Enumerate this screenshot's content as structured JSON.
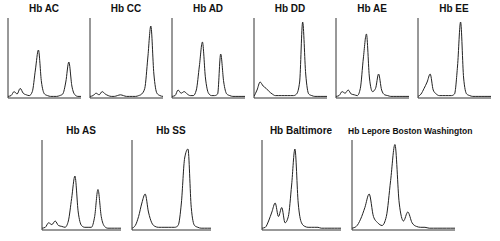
{
  "chart_data": [
    {
      "type": "line",
      "title": "Hb AC",
      "x": [
        0,
        0.25,
        0.5,
        0.75,
        1,
        1.25,
        1.5,
        1.75,
        2,
        2.25,
        2.5,
        2.75,
        3,
        3.25,
        3.5,
        3.75,
        4,
        4.25,
        4.5,
        4.75,
        5,
        5.25,
        5.5,
        5.75,
        6
      ],
      "values": [
        2,
        3,
        8,
        5,
        12,
        6,
        4,
        3,
        8,
        35,
        60,
        20,
        5,
        3,
        2,
        2,
        2,
        3,
        5,
        20,
        45,
        15,
        4,
        2,
        2
      ],
      "color": "#222222",
      "xlim": [
        0,
        6
      ],
      "ylim": [
        0,
        100
      ],
      "xticks": [
        0,
        1,
        2,
        3,
        4,
        5,
        6
      ],
      "yticks": [
        0,
        50,
        100
      ],
      "tick_labels": false,
      "grid": false
    },
    {
      "type": "line",
      "title": "Hb CC",
      "x": [
        0,
        0.25,
        0.5,
        0.75,
        1,
        1.25,
        1.5,
        1.75,
        2,
        2.25,
        2.5,
        2.75,
        3,
        3.25,
        3.5,
        3.75,
        4,
        4.25,
        4.5,
        4.75,
        5,
        5.25,
        5.5,
        5.75,
        6
      ],
      "values": [
        2,
        3,
        6,
        4,
        8,
        5,
        3,
        2,
        2,
        3,
        4,
        3,
        2,
        2,
        2,
        2,
        3,
        5,
        12,
        50,
        90,
        30,
        6,
        3,
        2
      ],
      "color": "#222222",
      "xlim": [
        0,
        6
      ],
      "ylim": [
        0,
        100
      ],
      "xticks": [
        0,
        1,
        2,
        3,
        4,
        5,
        6
      ],
      "yticks": [
        0,
        50,
        100
      ],
      "tick_labels": false,
      "grid": false
    },
    {
      "type": "line",
      "title": "Hb AD",
      "x": [
        0,
        0.25,
        0.5,
        0.75,
        1,
        1.25,
        1.5,
        1.75,
        2,
        2.25,
        2.5,
        2.75,
        3,
        3.25,
        3.5,
        3.75,
        4,
        4.25,
        4.5,
        4.75,
        5,
        5.25,
        5.5,
        5.75,
        6
      ],
      "values": [
        2,
        3,
        10,
        6,
        8,
        5,
        3,
        3,
        10,
        40,
        70,
        25,
        6,
        3,
        3,
        5,
        55,
        20,
        5,
        3,
        2,
        2,
        2,
        2,
        2
      ],
      "color": "#222222",
      "xlim": [
        0,
        6
      ],
      "ylim": [
        0,
        100
      ],
      "xticks": [
        0,
        1,
        2,
        3,
        4,
        5,
        6
      ],
      "yticks": [
        0,
        50,
        100
      ],
      "tick_labels": false,
      "grid": false
    },
    {
      "type": "line",
      "title": "Hb DD",
      "x": [
        0,
        0.25,
        0.5,
        0.75,
        1,
        1.25,
        1.5,
        1.75,
        2,
        2.25,
        2.5,
        2.75,
        3,
        3.25,
        3.5,
        3.75,
        4,
        4.25,
        4.5,
        4.75,
        5,
        5.25,
        5.5,
        5.75,
        6
      ],
      "values": [
        2,
        10,
        20,
        15,
        12,
        8,
        5,
        3,
        3,
        3,
        3,
        3,
        3,
        3,
        5,
        20,
        95,
        30,
        5,
        3,
        2,
        2,
        2,
        2,
        2
      ],
      "color": "#222222",
      "xlim": [
        0,
        6
      ],
      "ylim": [
        0,
        100
      ],
      "xticks": [
        0,
        1,
        2,
        3,
        4,
        5,
        6
      ],
      "yticks": [
        0,
        50,
        100
      ],
      "tick_labels": false,
      "grid": false
    },
    {
      "type": "line",
      "title": "Hb AE",
      "x": [
        0,
        0.25,
        0.5,
        0.75,
        1,
        1.25,
        1.5,
        1.75,
        2,
        2.25,
        2.5,
        2.75,
        3,
        3.25,
        3.5,
        3.75,
        4,
        4.25,
        4.5,
        4.75,
        5,
        5.25,
        5.5,
        5.75,
        6
      ],
      "values": [
        2,
        3,
        8,
        6,
        10,
        5,
        4,
        3,
        12,
        50,
        80,
        25,
        8,
        12,
        30,
        10,
        4,
        3,
        2,
        2,
        2,
        2,
        2,
        2,
        2
      ],
      "color": "#222222",
      "xlim": [
        0,
        6
      ],
      "ylim": [
        0,
        100
      ],
      "xticks": [
        0,
        1,
        2,
        3,
        4,
        5,
        6
      ],
      "yticks": [
        0,
        50,
        100
      ],
      "tick_labels": false,
      "grid": false
    },
    {
      "type": "line",
      "title": "Hb EE",
      "x": [
        0,
        0.25,
        0.5,
        0.75,
        1,
        1.25,
        1.5,
        1.75,
        2,
        2.25,
        2.5,
        2.75,
        3,
        3.25,
        3.5,
        3.75,
        4,
        4.25,
        4.5,
        4.75,
        5,
        5.25,
        5.5,
        5.75,
        6
      ],
      "values": [
        2,
        5,
        12,
        20,
        30,
        10,
        5,
        3,
        3,
        3,
        3,
        3,
        5,
        40,
        95,
        25,
        5,
        3,
        2,
        2,
        2,
        2,
        2,
        2,
        2
      ],
      "color": "#222222",
      "xlim": [
        0,
        6
      ],
      "ylim": [
        0,
        100
      ],
      "xticks": [
        0,
        1,
        2,
        3,
        4,
        5,
        6
      ],
      "yticks": [
        0,
        50,
        100
      ],
      "tick_labels": false,
      "grid": false
    },
    {
      "type": "line",
      "title": "Hb AS",
      "x": [
        0,
        0.25,
        0.5,
        0.75,
        1,
        1.25,
        1.5,
        1.75,
        2,
        2.25,
        2.5,
        2.75,
        3,
        3.25,
        3.5,
        3.75,
        4,
        4.25,
        4.5,
        4.75,
        5,
        5.25,
        5.5,
        5.75,
        6
      ],
      "values": [
        2,
        3,
        8,
        6,
        10,
        5,
        4,
        3,
        10,
        35,
        60,
        20,
        5,
        3,
        3,
        3,
        15,
        45,
        15,
        4,
        2,
        2,
        2,
        2,
        2
      ],
      "color": "#222222",
      "xlim": [
        0,
        6
      ],
      "ylim": [
        0,
        100
      ],
      "xticks": [
        0,
        1,
        2,
        3,
        4,
        5,
        6
      ],
      "yticks": [
        0,
        50,
        100
      ],
      "tick_labels": false,
      "grid": false
    },
    {
      "type": "line",
      "title": "Hb SS",
      "x": [
        0,
        0.25,
        0.5,
        0.75,
        1,
        1.25,
        1.5,
        1.75,
        2,
        2.25,
        2.5,
        2.75,
        3,
        3.25,
        3.5,
        3.75,
        4,
        4.25,
        4.5,
        4.75,
        5,
        5.25,
        5.5,
        5.75,
        6
      ],
      "values": [
        2,
        5,
        15,
        30,
        40,
        20,
        8,
        4,
        3,
        3,
        3,
        3,
        3,
        3,
        5,
        30,
        80,
        90,
        25,
        5,
        3,
        2,
        2,
        2,
        2
      ],
      "color": "#222222",
      "xlim": [
        0,
        6
      ],
      "ylim": [
        0,
        100
      ],
      "xticks": [
        0,
        1,
        2,
        3,
        4,
        5,
        6
      ],
      "yticks": [
        0,
        50,
        100
      ],
      "tick_labels": false,
      "grid": false
    },
    {
      "type": "line",
      "title": "Hb Baltimore",
      "x": [
        0,
        0.25,
        0.5,
        0.75,
        1,
        1.25,
        1.5,
        1.75,
        2,
        2.25,
        2.5,
        2.75,
        3,
        3.25,
        3.5,
        3.75,
        4,
        4.25,
        4.5,
        4.75,
        5,
        5.25,
        5.5,
        5.75,
        6
      ],
      "values": [
        2,
        3,
        10,
        20,
        30,
        15,
        25,
        8,
        15,
        50,
        90,
        30,
        8,
        4,
        3,
        3,
        3,
        3,
        2,
        2,
        2,
        2,
        2,
        2,
        2
      ],
      "color": "#222222",
      "xlim": [
        0,
        6
      ],
      "ylim": [
        0,
        100
      ],
      "xticks": [
        0,
        1,
        2,
        3,
        4,
        5,
        6
      ],
      "yticks": [
        0,
        50,
        100
      ],
      "tick_labels": false,
      "grid": false
    },
    {
      "type": "line",
      "title": "Hb Lepore Boston Washington",
      "x": [
        0,
        0.25,
        0.5,
        0.75,
        1,
        1.25,
        1.5,
        1.75,
        2,
        2.25,
        2.5,
        2.75,
        3,
        3.25,
        3.5,
        3.75,
        4,
        4.25,
        4.5,
        4.75,
        5,
        5.25,
        5.5,
        5.75,
        6
      ],
      "values": [
        2,
        4,
        12,
        25,
        40,
        15,
        8,
        5,
        15,
        55,
        95,
        30,
        10,
        20,
        8,
        4,
        3,
        3,
        2,
        2,
        2,
        2,
        2,
        2,
        2
      ],
      "color": "#222222",
      "xlim": [
        0,
        6
      ],
      "ylim": [
        0,
        100
      ],
      "xticks": [
        0,
        1,
        2,
        3,
        4,
        5,
        6
      ],
      "yticks": [
        0,
        50,
        100
      ],
      "tick_labels": false,
      "grid": false
    }
  ]
}
